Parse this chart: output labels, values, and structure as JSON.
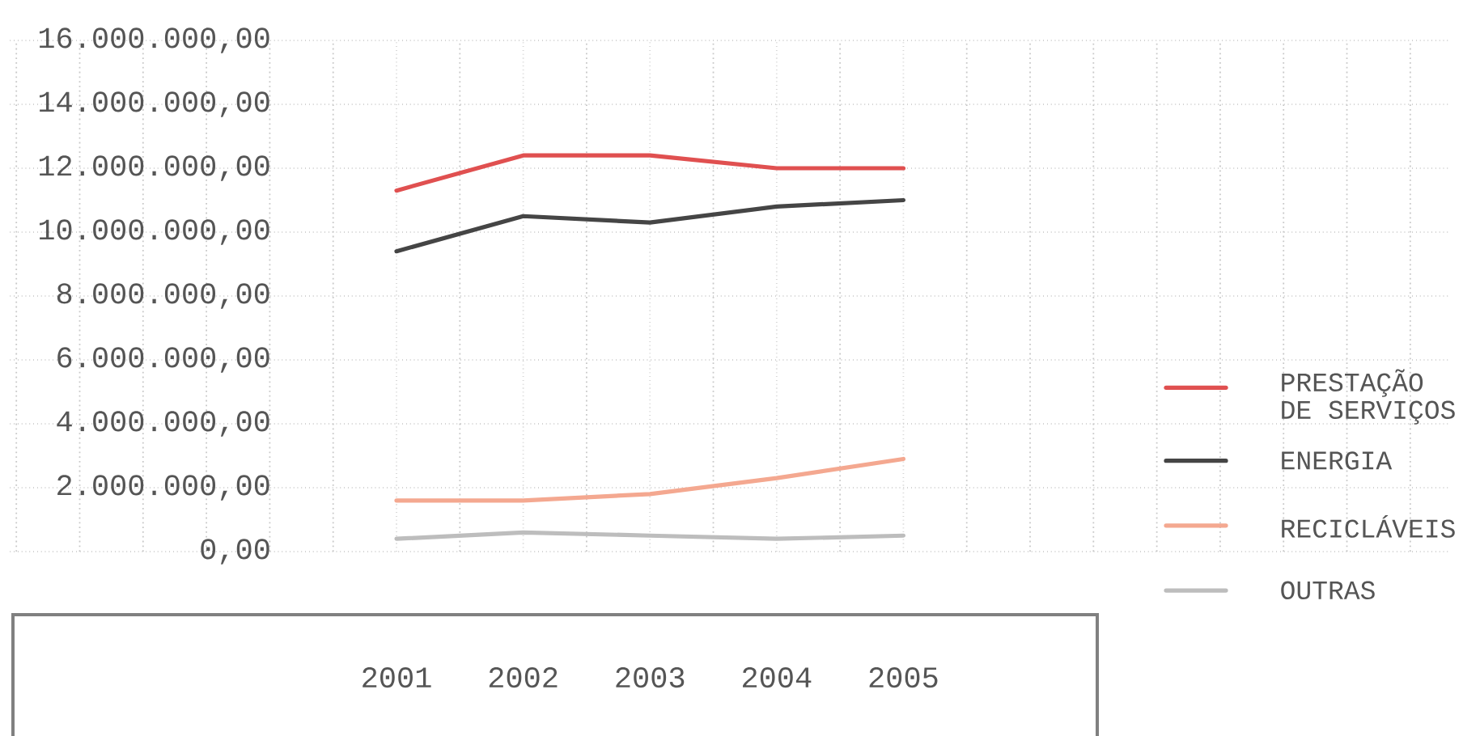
{
  "chart_data": {
    "type": "line",
    "categories": [
      "2001",
      "2002",
      "2003",
      "2004",
      "2005"
    ],
    "series": [
      {
        "name": "PRESTAÇÃO DE SERVIÇOS",
        "color": "#e05050",
        "values": [
          11300000,
          12400000,
          12400000,
          12000000,
          12000000
        ]
      },
      {
        "name": "ENERGIA",
        "color": "#454545",
        "values": [
          9400000,
          10500000,
          10300000,
          10800000,
          11000000
        ]
      },
      {
        "name": "RECICLÁVEIS",
        "color": "#f4a890",
        "values": [
          1600000,
          1600000,
          1800000,
          2300000,
          2900000
        ]
      },
      {
        "name": "OUTRAS",
        "color": "#bdbdbd",
        "values": [
          400000,
          600000,
          500000,
          400000,
          500000
        ]
      }
    ],
    "ylim": [
      0,
      16000000
    ],
    "yticks": [
      {
        "value": 0,
        "label": "0,00"
      },
      {
        "value": 2000000,
        "label": "2.000.000,00"
      },
      {
        "value": 4000000,
        "label": "4.000.000,00"
      },
      {
        "value": 6000000,
        "label": "6.000.000,00"
      },
      {
        "value": 8000000,
        "label": "8.000.000,00"
      },
      {
        "value": 10000000,
        "label": "10.000.000,00"
      },
      {
        "value": 12000000,
        "label": "12.000.000,00"
      },
      {
        "value": 14000000,
        "label": "14.000.000,00"
      },
      {
        "value": 16000000,
        "label": "16.000.000,00"
      }
    ],
    "grid": true,
    "legend": "right"
  }
}
